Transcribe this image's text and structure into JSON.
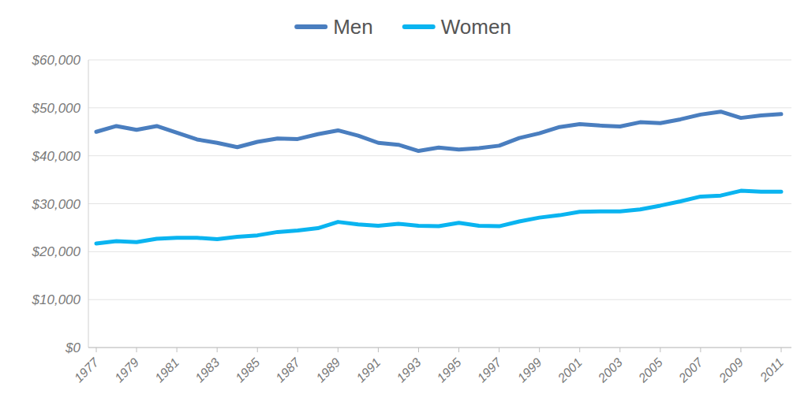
{
  "chart_data": {
    "type": "line",
    "categories": [
      1977,
      null,
      1979,
      null,
      1981,
      null,
      1983,
      null,
      1985,
      null,
      1987,
      null,
      1989,
      null,
      1991,
      null,
      1993,
      null,
      1995,
      null,
      1997,
      null,
      1999,
      null,
      2001,
      null,
      2003,
      null,
      2005,
      null,
      2007,
      null,
      2009,
      null,
      2011
    ],
    "series": [
      {
        "name": "Men",
        "color": "#4a7ebf",
        "values": [
          45000,
          46200,
          45400,
          46200,
          44800,
          43400,
          42700,
          41800,
          42900,
          43600,
          43500,
          44500,
          45300,
          44200,
          42700,
          42300,
          41000,
          41700,
          41300,
          41600,
          42100,
          43700,
          44700,
          46000,
          46600,
          46300,
          46100,
          47000,
          46800,
          47600,
          48600,
          49200,
          47900,
          48400,
          48700
        ]
      },
      {
        "name": "Women",
        "color": "#0ab4f0",
        "values": [
          21700,
          22200,
          22000,
          22700,
          22900,
          22900,
          22600,
          23100,
          23400,
          24100,
          24400,
          24900,
          26200,
          25700,
          25400,
          25800,
          25400,
          25300,
          26000,
          25400,
          25300,
          26300,
          27100,
          27600,
          28300,
          28400,
          28400,
          28800,
          29600,
          30500,
          31500,
          31700,
          32700,
          32500,
          32500
        ]
      }
    ],
    "ylim": [
      0,
      60000
    ],
    "yticks": [
      {
        "value": 0,
        "label": "$0"
      },
      {
        "value": 10000,
        "label": "$10,000"
      },
      {
        "value": 20000,
        "label": "$20,000"
      },
      {
        "value": 30000,
        "label": "$30,000"
      },
      {
        "value": 40000,
        "label": "$40,000"
      },
      {
        "value": 50000,
        "label": "$50,000"
      },
      {
        "value": 60000,
        "label": "$60,000"
      }
    ],
    "grid": true,
    "legend": "top"
  }
}
